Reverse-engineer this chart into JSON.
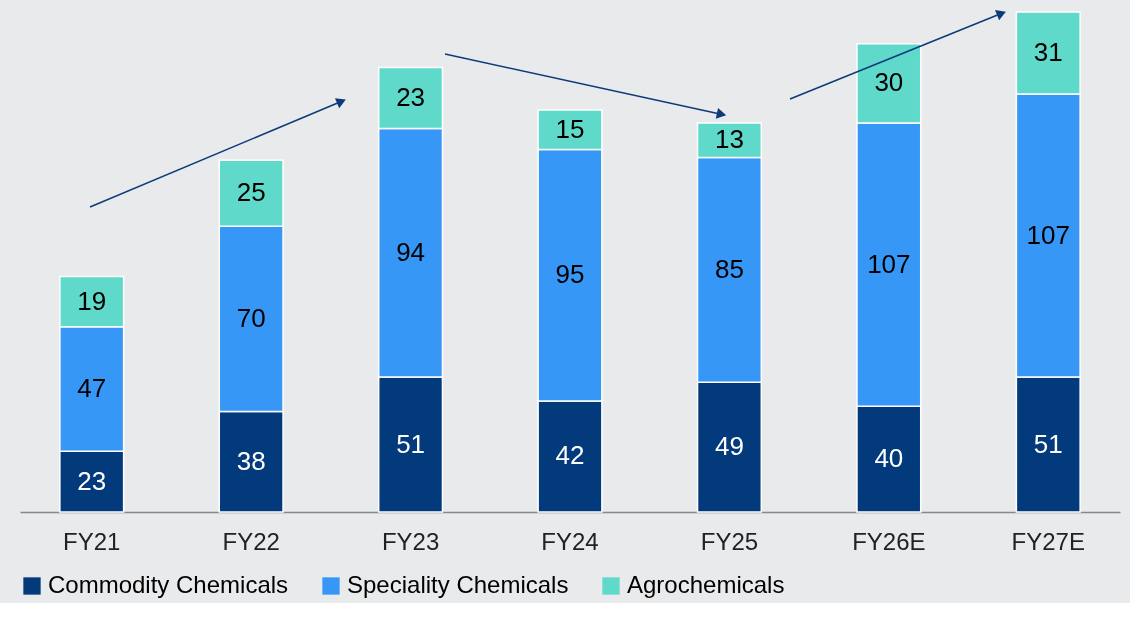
{
  "chart_data": {
    "type": "bar",
    "stacked": true,
    "data_labels": true,
    "legend": "bottom",
    "categories": [
      "FY21",
      "FY22",
      "FY23",
      "FY24",
      "FY25",
      "FY26E",
      "FY27E"
    ],
    "series": [
      {
        "name": "Commodity Chemicals",
        "color": "#023a7c",
        "values": [
          23,
          38,
          51,
          42,
          49,
          40,
          51
        ]
      },
      {
        "name": "Speciality Chemicals",
        "color": "#3797f7",
        "values": [
          47,
          70,
          94,
          95,
          85,
          107,
          107
        ]
      },
      {
        "name": "Agrochemicals",
        "color": "#5fd9c9",
        "values": [
          19,
          25,
          23,
          15,
          13,
          30,
          31
        ]
      }
    ]
  }
}
